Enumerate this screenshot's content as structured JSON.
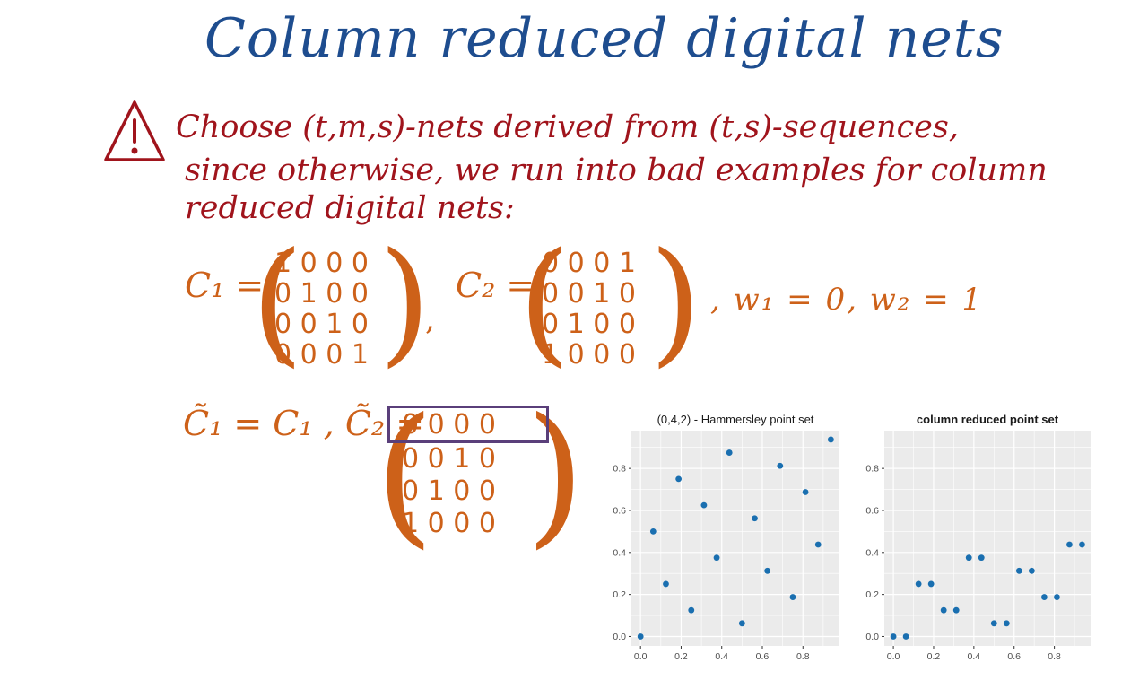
{
  "title": "Column reduced digital nets",
  "warning": {
    "icon": "warning-triangle-icon",
    "line1": "Choose (t,m,s)-nets derived from (t,s)-sequences,",
    "line2": "since otherwise, we run into bad examples for column",
    "line3": "reduced digital nets:"
  },
  "matrices": {
    "c1_label": "C₁ =",
    "c1_rows": [
      "1 0 0 0",
      "0 1 0 0",
      "0 0 1 0",
      "0 0 0 1"
    ],
    "comma": ",",
    "c2_label": "C₂ =",
    "c2_rows": [
      "0 0 0 1",
      "0 0 1 0",
      "0 1 0 0",
      "1 0 0 0"
    ],
    "weights": ", w₁ = 0, w₂ = 1",
    "reduced_eq": "C̃₁ = C₁ , C̃₂ =",
    "c2_reduced_rows": [
      "0 0 0 0",
      "0 0 1 0",
      "0 1 0 0",
      "1 0 0 0"
    ]
  },
  "colors": {
    "title": "#1e4d8f",
    "warning": "#a0141c",
    "math": "#cd6119",
    "highlight_box": "#5a3f7a",
    "panel_bg": "#ebebeb",
    "point": "#1a6fb0"
  },
  "chart_data": [
    {
      "type": "scatter",
      "title": "(0,4,2) - Hammersley point set",
      "xlim": [
        -0.045,
        0.98
      ],
      "ylim": [
        -0.045,
        0.98
      ],
      "x_ticks": [
        "0.0",
        "0.2",
        "0.4",
        "0.6",
        "0.8"
      ],
      "y_ticks": [
        "0.0",
        "0.2",
        "0.4",
        "0.6",
        "0.8"
      ],
      "grid": true,
      "points": [
        [
          0.0,
          0.0
        ],
        [
          0.0625,
          0.5
        ],
        [
          0.125,
          0.25
        ],
        [
          0.1875,
          0.75
        ],
        [
          0.25,
          0.125
        ],
        [
          0.3125,
          0.625
        ],
        [
          0.375,
          0.375
        ],
        [
          0.4375,
          0.875
        ],
        [
          0.5,
          0.0625
        ],
        [
          0.5625,
          0.5625
        ],
        [
          0.625,
          0.3125
        ],
        [
          0.6875,
          0.8125
        ],
        [
          0.75,
          0.1875
        ],
        [
          0.8125,
          0.6875
        ],
        [
          0.875,
          0.4375
        ],
        [
          0.9375,
          0.9375
        ]
      ]
    },
    {
      "type": "scatter",
      "title": "column reduced point set",
      "title_bold": true,
      "xlim": [
        -0.045,
        0.98
      ],
      "ylim": [
        -0.045,
        0.98
      ],
      "x_ticks": [
        "0.0",
        "0.2",
        "0.4",
        "0.6",
        "0.8"
      ],
      "y_ticks": [
        "0.0",
        "0.2",
        "0.4",
        "0.6",
        "0.8"
      ],
      "grid": true,
      "points": [
        [
          0.0,
          0.0
        ],
        [
          0.0625,
          0.0
        ],
        [
          0.125,
          0.25
        ],
        [
          0.1875,
          0.25
        ],
        [
          0.25,
          0.125
        ],
        [
          0.3125,
          0.125
        ],
        [
          0.375,
          0.375
        ],
        [
          0.4375,
          0.375
        ],
        [
          0.5,
          0.0625
        ],
        [
          0.5625,
          0.0625
        ],
        [
          0.625,
          0.3125
        ],
        [
          0.6875,
          0.3125
        ],
        [
          0.75,
          0.1875
        ],
        [
          0.8125,
          0.1875
        ],
        [
          0.875,
          0.4375
        ],
        [
          0.9375,
          0.4375
        ]
      ]
    }
  ]
}
